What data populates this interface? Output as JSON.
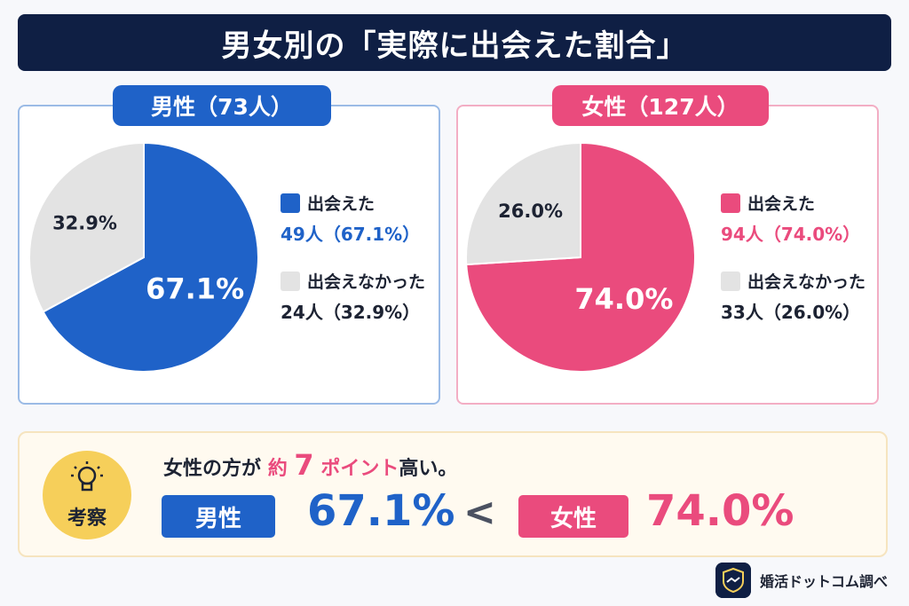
{
  "title": "男女別の「実際に出会えた割合」",
  "colors": {
    "male": "#1f62c8",
    "female": "#ea4b7d",
    "gray": "#e3e3e3",
    "navy": "#0f1f44"
  },
  "chart_data": [
    {
      "type": "pie",
      "title": "男性（73人）",
      "slices": [
        {
          "name": "出会えた",
          "count_label": "49人（67.1%）",
          "value": 67.1,
          "label": "67.1%"
        },
        {
          "name": "出会えなかった",
          "count_label": "24人（32.9%）",
          "value": 32.9,
          "label": "32.9%"
        }
      ]
    },
    {
      "type": "pie",
      "title": "女性（127人）",
      "slices": [
        {
          "name": "出会えた",
          "count_label": "94人（74.0%）",
          "value": 74.0,
          "label": "74.0%"
        },
        {
          "name": "出会えなかった",
          "count_label": "33人（26.0%）",
          "value": 26.0,
          "label": "26.0%"
        }
      ]
    }
  ],
  "insight": {
    "badge": "考察",
    "head_prefix": "女性の方が",
    "head_hl1": "約",
    "head_hl2": "7",
    "head_hl3": "ポイント",
    "head_suffix": "高い。",
    "male_label": "男性",
    "male_value": "67.1%",
    "compare": "<",
    "female_label": "女性",
    "female_value": "74.0%"
  },
  "footer": {
    "brand": "婚活ドットコム調べ"
  }
}
